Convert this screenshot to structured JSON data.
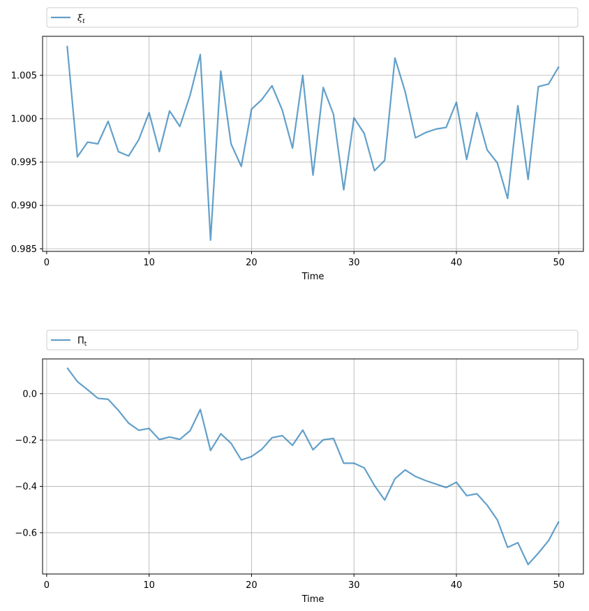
{
  "chart_data": [
    {
      "type": "line",
      "legend": {
        "symbol": "ξ",
        "subscript": "t",
        "placement": "top-left, above plot"
      },
      "xlabel": "Time",
      "ylabel": "",
      "xlim": [
        -0.4,
        52.4
      ],
      "ylim": [
        0.9847,
        1.0095
      ],
      "xticks": [
        0,
        10,
        20,
        30,
        40,
        50
      ],
      "yticks": [
        0.985,
        0.99,
        0.995,
        1.0,
        1.005
      ],
      "ytick_labels": [
        "0.985",
        "0.990",
        "0.995",
        "1.000",
        "1.005"
      ],
      "grid": true,
      "color": "#1f77b4",
      "x": [
        2,
        3,
        4,
        5,
        6,
        7,
        8,
        9,
        10,
        11,
        12,
        13,
        14,
        15,
        16,
        17,
        18,
        19,
        20,
        21,
        22,
        23,
        24,
        25,
        26,
        27,
        28,
        29,
        30,
        31,
        32,
        33,
        34,
        35,
        36,
        37,
        38,
        39,
        40,
        41,
        42,
        43,
        44,
        45,
        46,
        47,
        48,
        49,
        50
      ],
      "y": [
        1.0084,
        0.9956,
        0.9973,
        0.9971,
        0.9997,
        0.9962,
        0.9957,
        0.9976,
        1.0007,
        0.9962,
        1.0009,
        0.9991,
        1.0027,
        1.0074,
        0.986,
        1.0055,
        0.9971,
        0.9945,
        1.0011,
        1.0022,
        1.0038,
        1.001,
        0.9966,
        1.005,
        0.9935,
        1.0036,
        1.0005,
        0.9918,
        1.0001,
        0.9983,
        0.994,
        0.9952,
        1.007,
        1.0031,
        0.9978,
        0.9984,
        0.9988,
        0.999,
        1.0019,
        0.9953,
        1.0007,
        0.9964,
        0.9949,
        0.9908,
        1.0015,
        0.993,
        1.0037,
        1.004,
        1.006
      ]
    },
    {
      "type": "line",
      "legend": {
        "symbol": "Π",
        "subscript": "t",
        "placement": "top-left, above plot"
      },
      "xlabel": "Time",
      "ylabel": "",
      "xlim": [
        -0.4,
        52.4
      ],
      "ylim": [
        -0.778,
        0.15
      ],
      "xticks": [
        0,
        10,
        20,
        30,
        40,
        50
      ],
      "yticks": [
        0.0,
        -0.2,
        -0.4,
        -0.6
      ],
      "ytick_labels": [
        "0.0",
        "−0.2",
        "−0.4",
        "−0.6"
      ],
      "grid": true,
      "color": "#1f77b4",
      "x": [
        2,
        3,
        4,
        5,
        6,
        7,
        8,
        9,
        10,
        11,
        12,
        13,
        14,
        15,
        16,
        17,
        18,
        19,
        20,
        21,
        22,
        23,
        24,
        25,
        26,
        27,
        28,
        29,
        30,
        31,
        32,
        33,
        34,
        35,
        36,
        37,
        38,
        39,
        40,
        41,
        42,
        43,
        44,
        45,
        46,
        47,
        48,
        49,
        50
      ],
      "y": [
        0.112,
        0.052,
        0.017,
        -0.02,
        -0.024,
        -0.072,
        -0.127,
        -0.158,
        -0.15,
        -0.198,
        -0.187,
        -0.197,
        -0.16,
        -0.068,
        -0.245,
        -0.173,
        -0.214,
        -0.286,
        -0.271,
        -0.24,
        -0.19,
        -0.181,
        -0.223,
        -0.157,
        -0.242,
        -0.199,
        -0.193,
        -0.3,
        -0.3,
        -0.32,
        -0.396,
        -0.459,
        -0.367,
        -0.329,
        -0.357,
        -0.375,
        -0.39,
        -0.405,
        -0.382,
        -0.44,
        -0.432,
        -0.481,
        -0.545,
        -0.663,
        -0.643,
        -0.737,
        -0.688,
        -0.634,
        -0.551
      ]
    }
  ]
}
